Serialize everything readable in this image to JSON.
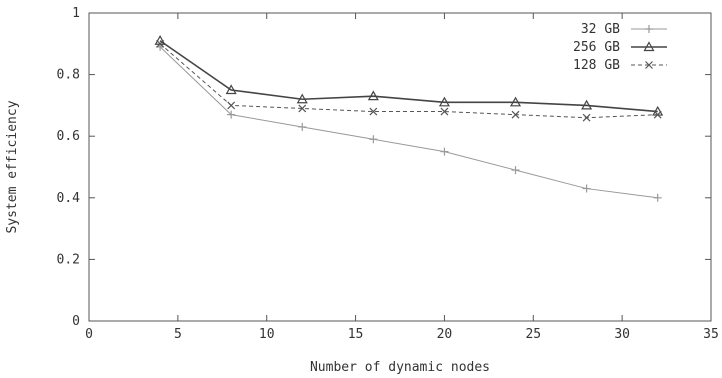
{
  "chart_data": {
    "type": "line",
    "title": "",
    "xlabel": "Number of dynamic nodes",
    "ylabel": "System efficiency",
    "xlim": [
      0,
      35
    ],
    "ylim": [
      0,
      1
    ],
    "xticks": [
      "0",
      "5",
      "10",
      "15",
      "20",
      "25",
      "30",
      "35"
    ],
    "yticks": [
      "0",
      "0.2",
      "0.4",
      "0.6",
      "0.8",
      "1"
    ],
    "grid": false,
    "legend_position": "top-right",
    "series": [
      {
        "name": "32 GB",
        "marker": "plus",
        "line": "solid-light",
        "color": "#999999",
        "x": [
          4,
          8,
          12,
          16,
          20,
          24,
          28,
          32
        ],
        "y": [
          0.89,
          0.67,
          0.63,
          0.59,
          0.55,
          0.49,
          0.43,
          0.4
        ]
      },
      {
        "name": "256 GB",
        "marker": "triangle",
        "line": "solid",
        "color": "#444444",
        "x": [
          4,
          8,
          12,
          16,
          20,
          24,
          28,
          32
        ],
        "y": [
          0.91,
          0.75,
          0.72,
          0.73,
          0.71,
          0.71,
          0.7,
          0.68
        ]
      },
      {
        "name": "128 GB",
        "marker": "x",
        "line": "dashed",
        "color": "#555555",
        "x": [
          4,
          8,
          12,
          16,
          20,
          24,
          28,
          32
        ],
        "y": [
          0.9,
          0.7,
          0.69,
          0.68,
          0.68,
          0.67,
          0.66,
          0.67
        ]
      }
    ]
  }
}
